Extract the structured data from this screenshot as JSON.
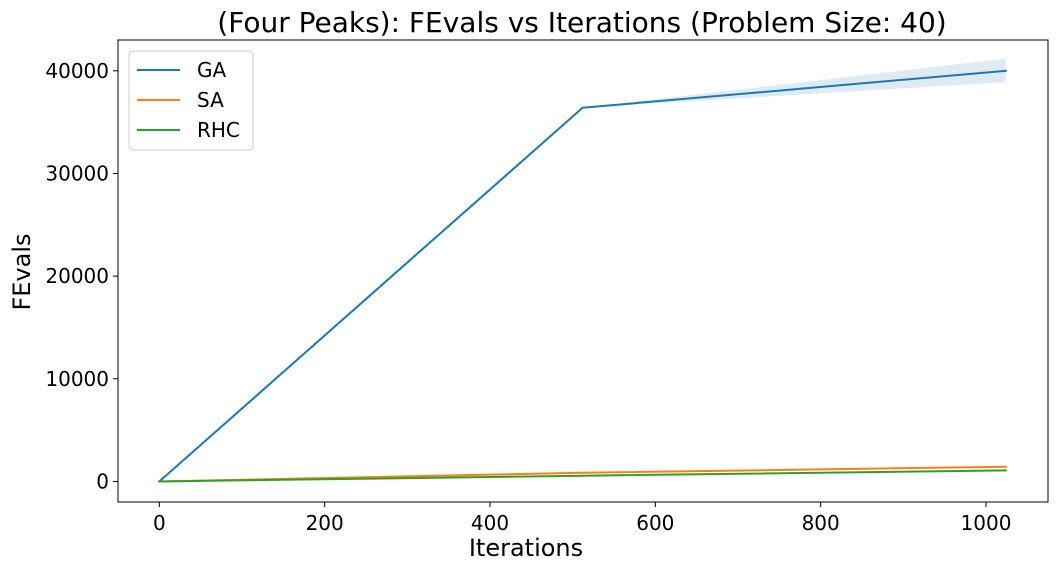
{
  "chart_data": {
    "type": "line",
    "title": "(Four Peaks): FEvals vs Iterations (Problem Size: 40)",
    "xlabel": "Iterations",
    "ylabel": "FEvals",
    "xlim": [
      -50,
      1075
    ],
    "ylim": [
      -2000,
      43000
    ],
    "xticks": [
      0,
      200,
      400,
      600,
      800,
      1000
    ],
    "yticks": [
      0,
      10000,
      20000,
      30000,
      40000
    ],
    "grid": false,
    "legend": {
      "placement": "top-left"
    },
    "series": [
      {
        "name": "GA",
        "color": "#1f77b4",
        "x": [
          0,
          512,
          1024
        ],
        "y": [
          0,
          36400,
          40000
        ],
        "band_lower": [
          0,
          36400,
          38900
        ],
        "band_upper": [
          0,
          36400,
          41200
        ]
      },
      {
        "name": "SA",
        "color": "#ff7f0e",
        "x": [
          0,
          512,
          1024
        ],
        "y": [
          0,
          850,
          1430
        ]
      },
      {
        "name": "RHC",
        "color": "#2ca02c",
        "x": [
          0,
          512,
          1024
        ],
        "y": [
          0,
          560,
          1080
        ]
      }
    ]
  }
}
